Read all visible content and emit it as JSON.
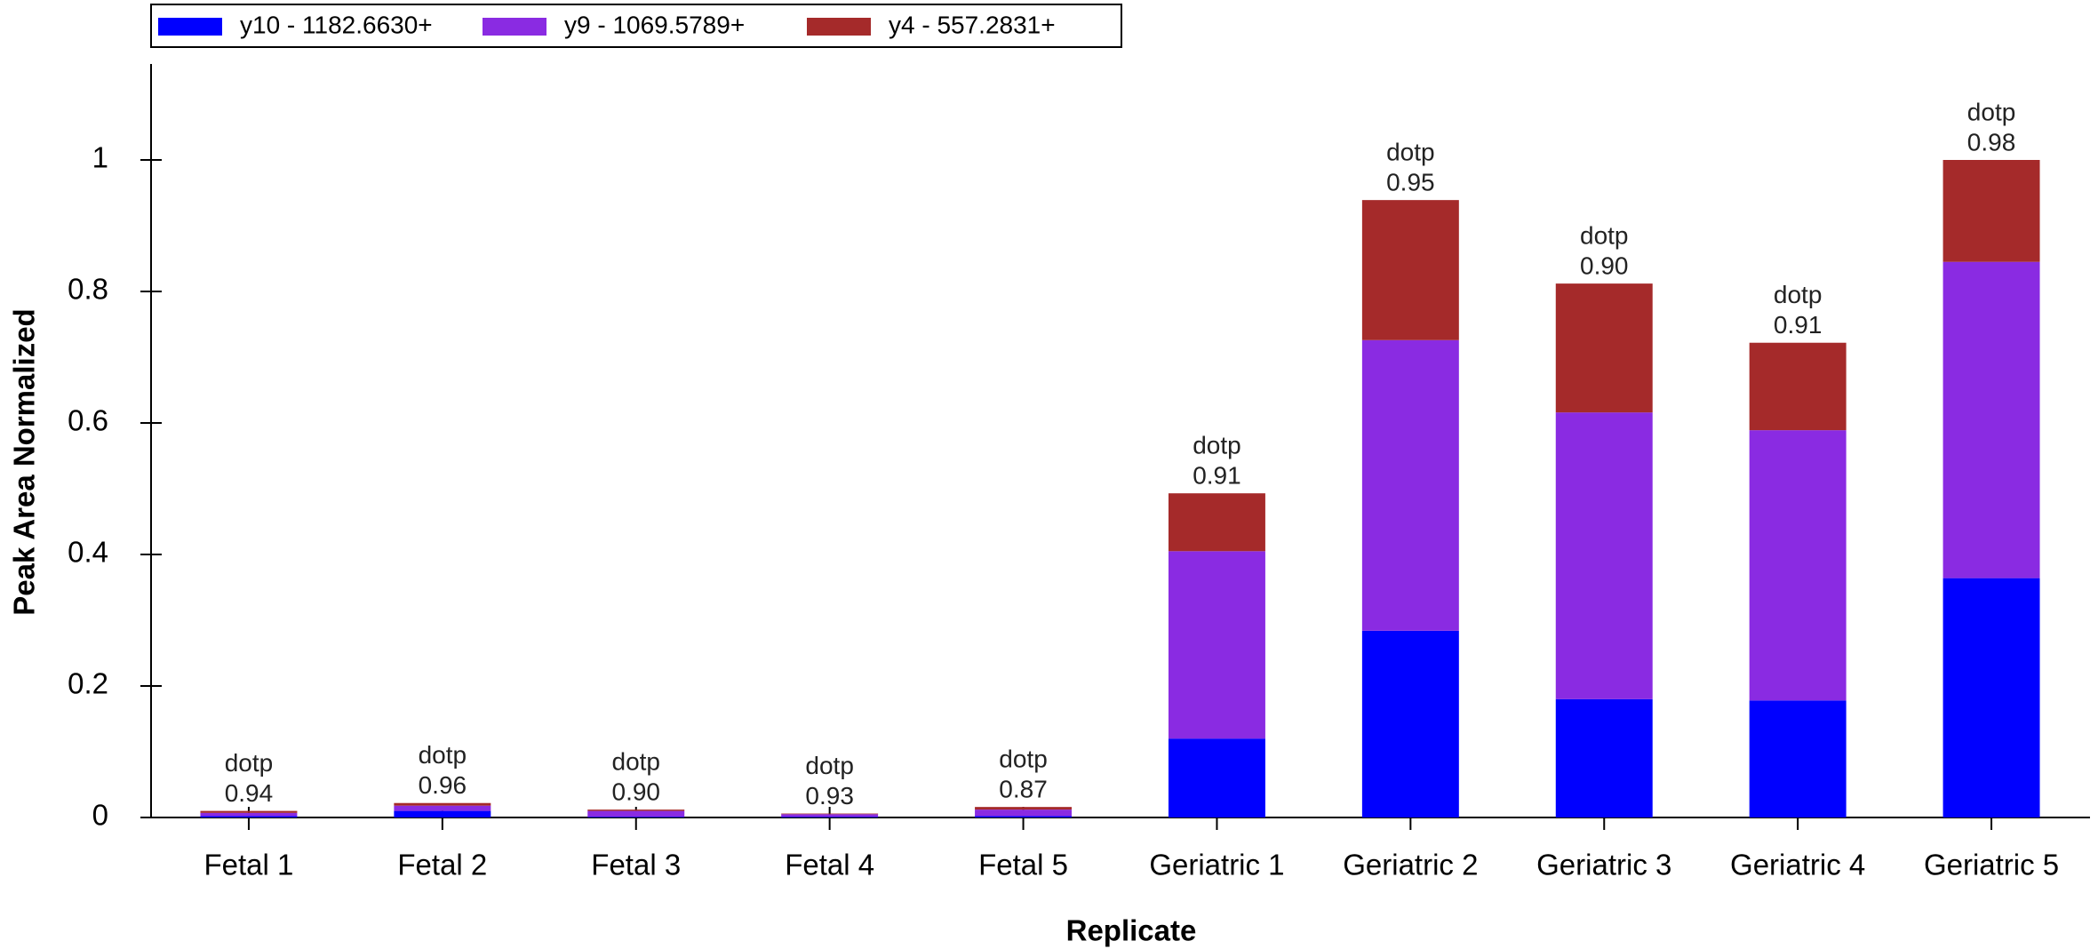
{
  "chart_data": {
    "type": "stacked_bar",
    "x_label": "Replicate",
    "y_label": "Peak Area Normalized",
    "categories": [
      "Fetal 1",
      "Fetal 2",
      "Fetal 3",
      "Fetal 4",
      "Fetal 5",
      "Geriatric 1",
      "Geriatric 2",
      "Geriatric 3",
      "Geriatric 4",
      "Geriatric 5"
    ],
    "series": [
      {
        "name": "y10 - 1182.6630+",
        "color": "#0000ff",
        "values": [
          0.002,
          0.01,
          0.001,
          0.001,
          0.002,
          0.12,
          0.284,
          0.18,
          0.178,
          0.364
        ]
      },
      {
        "name": "y9 - 1069.5789+",
        "color": "#8a2be2",
        "values": [
          0.005,
          0.008,
          0.009,
          0.004,
          0.01,
          0.285,
          0.442,
          0.436,
          0.411,
          0.481
        ]
      },
      {
        "name": "y4 - 557.2831+",
        "color": "#a52a2a",
        "values": [
          0.003,
          0.004,
          0.002,
          0.001,
          0.004,
          0.088,
          0.213,
          0.196,
          0.133,
          0.155
        ]
      }
    ],
    "annotation_title": "dotp",
    "annotations": [
      "0.94",
      "0.96",
      "0.90",
      "0.93",
      "0.87",
      "0.91",
      "0.95",
      "0.90",
      "0.91",
      "0.98"
    ],
    "ylim": [
      0,
      1.15
    ],
    "yticks": [
      0,
      0.2,
      0.4,
      0.6,
      0.8,
      1
    ],
    "legend": "top-left"
  }
}
